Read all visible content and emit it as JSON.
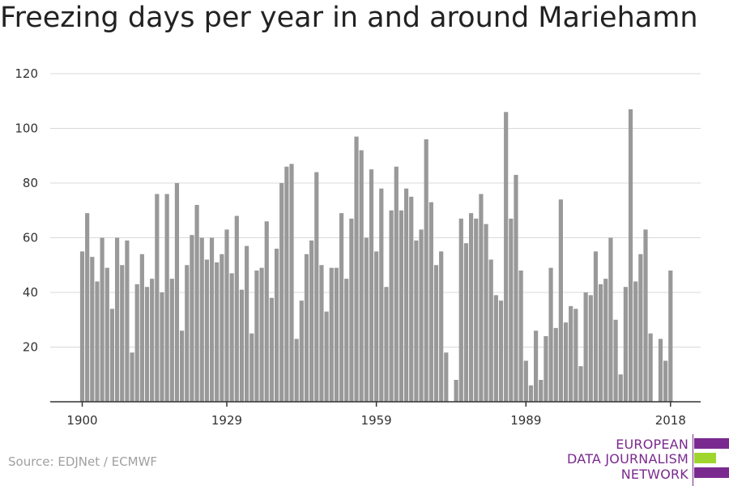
{
  "title": "Freezing days per year in and around Mariehamn",
  "source": "Source: EDJNet / ECMWF",
  "logo": {
    "line1": "EUROPEAN",
    "line2": "DATA JOURNALISM",
    "line3": "NETWORK",
    "color_purple": "#7a2a8f",
    "color_green": "#9ed62e"
  },
  "colors": {
    "bar": "#999999",
    "grid": "#d9d9d9",
    "axis": "#333333"
  },
  "chart_data": {
    "type": "bar",
    "title": "Freezing days per year in and around Mariehamn",
    "xlabel": "",
    "ylabel": "",
    "ylim": [
      0,
      120
    ],
    "yticks": [
      20,
      40,
      60,
      80,
      100,
      120
    ],
    "xticks": [
      1900,
      1929,
      1959,
      1989,
      2018
    ],
    "grid": true,
    "x": [
      1900,
      1901,
      1902,
      1903,
      1904,
      1905,
      1906,
      1907,
      1908,
      1909,
      1910,
      1911,
      1912,
      1913,
      1914,
      1915,
      1916,
      1917,
      1918,
      1919,
      1920,
      1921,
      1922,
      1923,
      1924,
      1925,
      1926,
      1927,
      1928,
      1929,
      1930,
      1931,
      1932,
      1933,
      1934,
      1935,
      1936,
      1937,
      1938,
      1939,
      1940,
      1941,
      1942,
      1943,
      1944,
      1945,
      1946,
      1947,
      1948,
      1949,
      1950,
      1951,
      1952,
      1953,
      1954,
      1955,
      1956,
      1957,
      1958,
      1959,
      1960,
      1961,
      1962,
      1963,
      1964,
      1965,
      1966,
      1967,
      1968,
      1969,
      1970,
      1971,
      1972,
      1973,
      1974,
      1975,
      1976,
      1977,
      1978,
      1979,
      1980,
      1981,
      1982,
      1983,
      1984,
      1985,
      1986,
      1987,
      1988,
      1989,
      1990,
      1991,
      1992,
      1993,
      1994,
      1995,
      1996,
      1997,
      1998,
      1999,
      2000,
      2001,
      2002,
      2003,
      2004,
      2005,
      2006,
      2007,
      2008,
      2009,
      2010,
      2011,
      2012,
      2013,
      2014,
      2015,
      2016,
      2017,
      2018
    ],
    "values": [
      55,
      69,
      53,
      44,
      60,
      49,
      34,
      60,
      50,
      59,
      18,
      43,
      54,
      42,
      45,
      76,
      40,
      76,
      45,
      80,
      26,
      50,
      61,
      72,
      60,
      52,
      60,
      51,
      54,
      63,
      47,
      68,
      41,
      57,
      25,
      48,
      49,
      66,
      38,
      56,
      80,
      86,
      87,
      23,
      37,
      54,
      59,
      84,
      50,
      33,
      49,
      49,
      69,
      45,
      67,
      97,
      92,
      60,
      85,
      55,
      78,
      42,
      70,
      86,
      70,
      78,
      75,
      59,
      63,
      96,
      73,
      50,
      55,
      18,
      0,
      8,
      67,
      58,
      69,
      67,
      76,
      65,
      52,
      39,
      37,
      106,
      67,
      83,
      48,
      15,
      6,
      26,
      8,
      24,
      49,
      27,
      74,
      29,
      35,
      34,
      13,
      40,
      39,
      55,
      43,
      45,
      60,
      30,
      10,
      42,
      107,
      44,
      54,
      63,
      25,
      0,
      23,
      15,
      48
    ]
  }
}
